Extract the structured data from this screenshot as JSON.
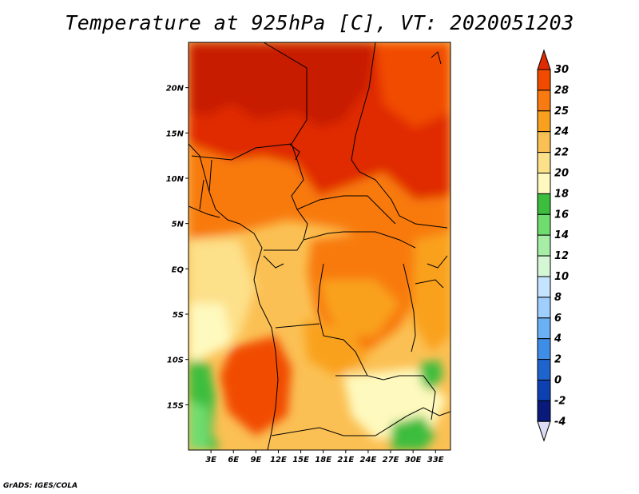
{
  "title": "Temperature at 925hPa [C], VT: 2020051203",
  "credit": "GrADS: IGES/COLA",
  "map": {
    "lon_range": [
      0,
      35
    ],
    "lat_range": [
      -20,
      25
    ],
    "lon_ticks": [
      "3E",
      "6E",
      "9E",
      "12E",
      "15E",
      "18E",
      "21E",
      "24E",
      "27E",
      "30E",
      "33E"
    ],
    "lat_ticks": [
      "20N",
      "15N",
      "10N",
      "5N",
      "EQ",
      "5S",
      "10S",
      "15S"
    ]
  },
  "colorbar": {
    "labels": [
      "30",
      "28",
      "25",
      "24",
      "22",
      "20",
      "18",
      "16",
      "14",
      "12",
      "10",
      "8",
      "6",
      "4",
      "2",
      "0",
      "-2",
      "-4"
    ],
    "colors": [
      "#e02a00",
      "#f14b00",
      "#f87a10",
      "#f9a11f",
      "#fbc054",
      "#fde08a",
      "#fef9be",
      "#3dbd3d",
      "#6fdc6f",
      "#a6eda6",
      "#d5f7d5",
      "#c4e4ff",
      "#9fcfff",
      "#6ab0f5",
      "#3e8de6",
      "#1f63cc",
      "#0d40b0",
      "#0a1a7a",
      "#dcdcf5"
    ]
  }
}
